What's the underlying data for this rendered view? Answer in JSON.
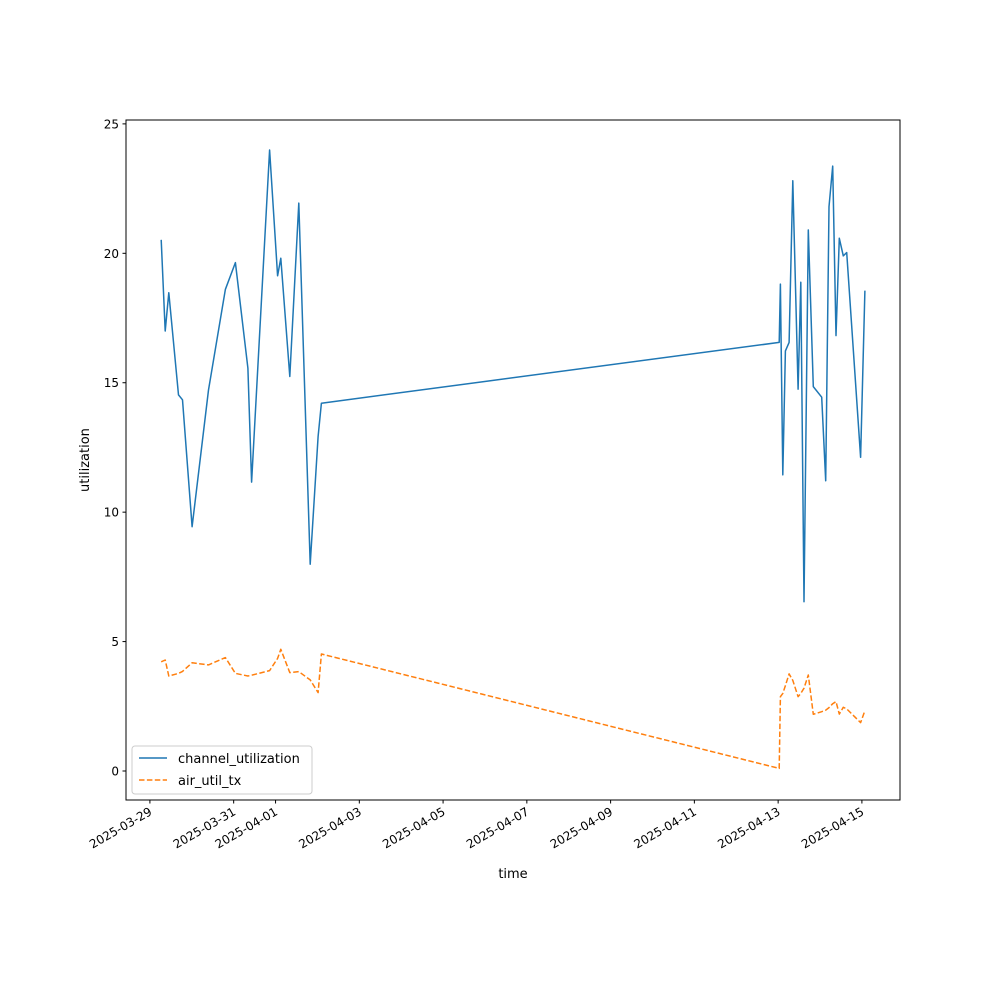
{
  "chart_data": {
    "type": "line",
    "title": "",
    "xlabel": "time",
    "ylabel": "utilization",
    "xlim": [
      "2025-03-28T10:18",
      "2025-04-15T21:50"
    ],
    "ylim": [
      -1.12,
      25.15
    ],
    "grid": false,
    "legend_placement": "lower-left",
    "x_ticks": [
      "2025-03-29",
      "2025-03-31",
      "2025-04-01",
      "2025-04-03",
      "2025-04-05",
      "2025-04-07",
      "2025-04-09",
      "2025-04-11",
      "2025-04-13",
      "2025-04-15"
    ],
    "y_ticks": [
      0,
      5,
      10,
      15,
      20,
      25
    ],
    "x": [
      "2025-03-29T06:27",
      "2025-03-29T08:45",
      "2025-03-29T10:51",
      "2025-03-29T16:24",
      "2025-03-29T18:41",
      "2025-03-30T00:10",
      "2025-03-30T09:33",
      "2025-03-30T19:15",
      "2025-03-31T00:58",
      "2025-03-31T08:10",
      "2025-03-31T10:17",
      "2025-03-31T20:34",
      "2025-04-01T01:09",
      "2025-04-01T03:02",
      "2025-04-01T08:10",
      "2025-04-01T13:19",
      "2025-04-01T19:50",
      "2025-04-02T00:24",
      "2025-04-02T02:17",
      "2025-04-13T00:35",
      "2025-04-13T01:19",
      "2025-04-13T02:41",
      "2025-04-13T04:11",
      "2025-04-13T06:17",
      "2025-04-13T08:24",
      "2025-04-13T11:25",
      "2025-04-13T12:58",
      "2025-04-13T14:51",
      "2025-04-13T17:18",
      "2025-04-13T20:10",
      "2025-04-14T00:58",
      "2025-04-14T03:15",
      "2025-04-14T05:08",
      "2025-04-14T07:15",
      "2025-04-14T09:08",
      "2025-04-14T11:02",
      "2025-04-14T13:19",
      "2025-04-14T15:16",
      "2025-04-14T23:15",
      "2025-04-15T01:42"
    ],
    "series": [
      {
        "name": "channel_utilization",
        "color": "#1f77b4",
        "style": "solid",
        "values": [
          20.52,
          17.0,
          18.48,
          14.53,
          14.34,
          9.44,
          14.72,
          18.61,
          19.64,
          15.56,
          11.16,
          23.99,
          19.13,
          19.81,
          15.24,
          21.94,
          7.99,
          12.92,
          14.21,
          16.56,
          18.81,
          11.44,
          16.23,
          16.56,
          22.8,
          14.75,
          18.88,
          6.54,
          20.9,
          14.85,
          14.44,
          11.21,
          21.8,
          23.37,
          16.82,
          20.58,
          19.9,
          20.03,
          12.12,
          18.56
        ]
      },
      {
        "name": "air_util_tx",
        "color": "#ff7f0e",
        "style": "dashed",
        "values": [
          4.22,
          4.29,
          3.67,
          3.77,
          3.85,
          4.18,
          4.1,
          4.38,
          3.77,
          3.67,
          3.7,
          3.88,
          4.35,
          4.7,
          3.8,
          3.84,
          3.52,
          3.03,
          4.52,
          0.1,
          2.87,
          3.0,
          3.3,
          3.75,
          3.5,
          2.87,
          3.0,
          3.2,
          3.71,
          2.19,
          2.29,
          2.35,
          2.45,
          2.6,
          2.68,
          2.2,
          2.46,
          2.4,
          1.87,
          2.33
        ]
      }
    ]
  }
}
